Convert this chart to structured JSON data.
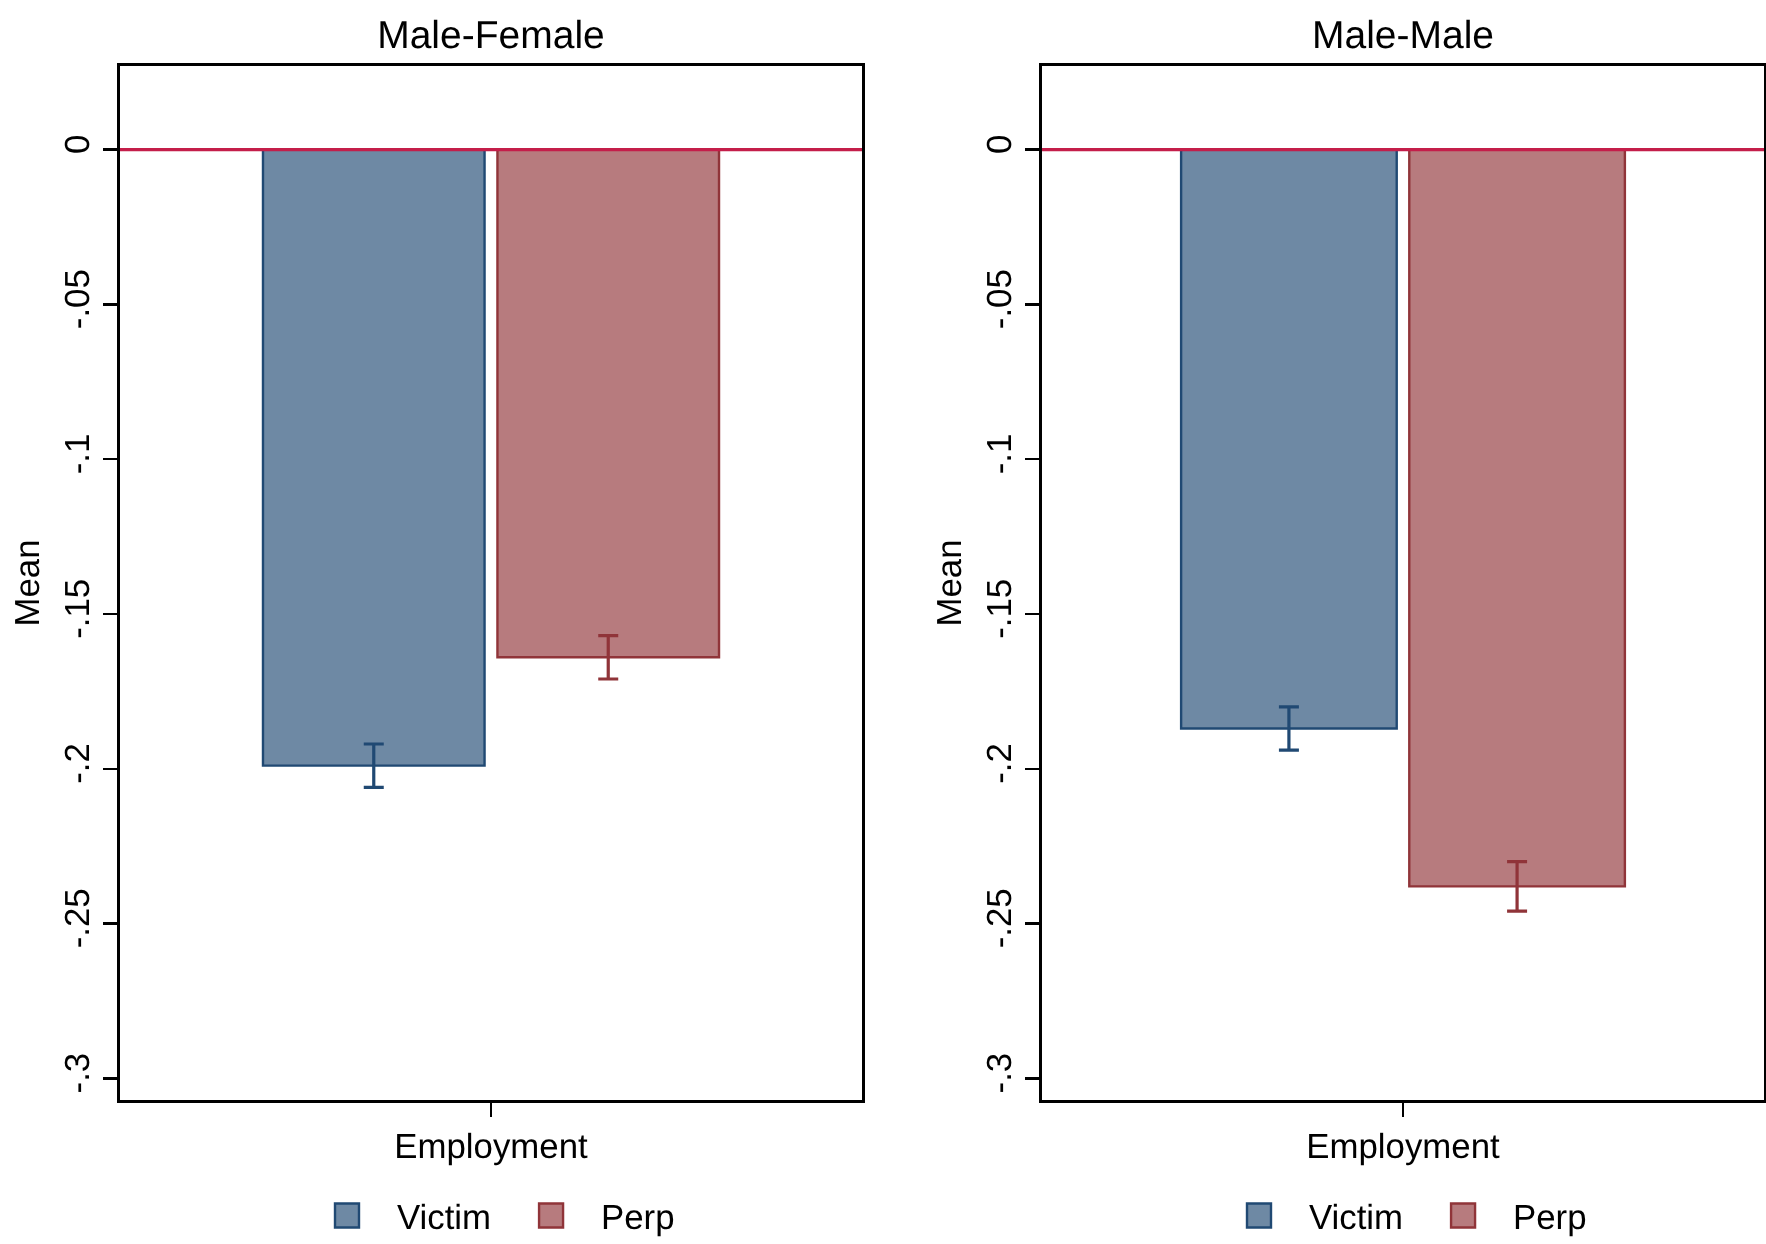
{
  "chart_data": [
    {
      "type": "bar",
      "title": "Male-Female",
      "ylabel": "Mean",
      "categories": [
        "Employment"
      ],
      "series": [
        {
          "name": "Victim",
          "color": "#6e89a4",
          "values": [
            -0.199
          ],
          "errors": [
            0.007
          ]
        },
        {
          "name": "Perp",
          "color": "#b77b7e",
          "values": [
            -0.164
          ],
          "errors": [
            0.007
          ]
        }
      ],
      "ylim": [
        -0.307,
        0.027
      ],
      "yticks": [
        0,
        {
          "value": -0.05,
          "label": "-.05"
        },
        {
          "value": -0.1,
          "label": "-.1"
        },
        {
          "value": -0.15,
          "label": "-.15"
        },
        {
          "value": -0.2,
          "label": "-.2"
        },
        {
          "value": -0.25,
          "label": "-.25"
        },
        {
          "value": -0.3,
          "label": "-.3"
        }
      ],
      "ref_lines": [
        {
          "axis": "y",
          "value": 0,
          "color": "#c41e4a"
        }
      ],
      "grid": false,
      "legend": "bottom"
    },
    {
      "type": "bar",
      "title": "Male-Male",
      "ylabel": "Mean",
      "categories": [
        "Employment"
      ],
      "series": [
        {
          "name": "Victim",
          "color": "#6e89a4",
          "values": [
            -0.187
          ],
          "errors": [
            0.007
          ]
        },
        {
          "name": "Perp",
          "color": "#b77b7e",
          "values": [
            -0.238
          ],
          "errors": [
            0.008
          ]
        }
      ],
      "ylim": [
        -0.307,
        0.027
      ],
      "yticks": [
        0,
        {
          "value": -0.05,
          "label": "-.05"
        },
        {
          "value": -0.1,
          "label": "-.1"
        },
        {
          "value": -0.15,
          "label": "-.15"
        },
        {
          "value": -0.2,
          "label": "-.2"
        },
        {
          "value": -0.25,
          "label": "-.25"
        },
        {
          "value": -0.3,
          "label": "-.3"
        }
      ],
      "ref_lines": [
        {
          "axis": "y",
          "value": 0,
          "color": "#c41e4a"
        }
      ],
      "grid": false,
      "legend": "bottom"
    }
  ]
}
